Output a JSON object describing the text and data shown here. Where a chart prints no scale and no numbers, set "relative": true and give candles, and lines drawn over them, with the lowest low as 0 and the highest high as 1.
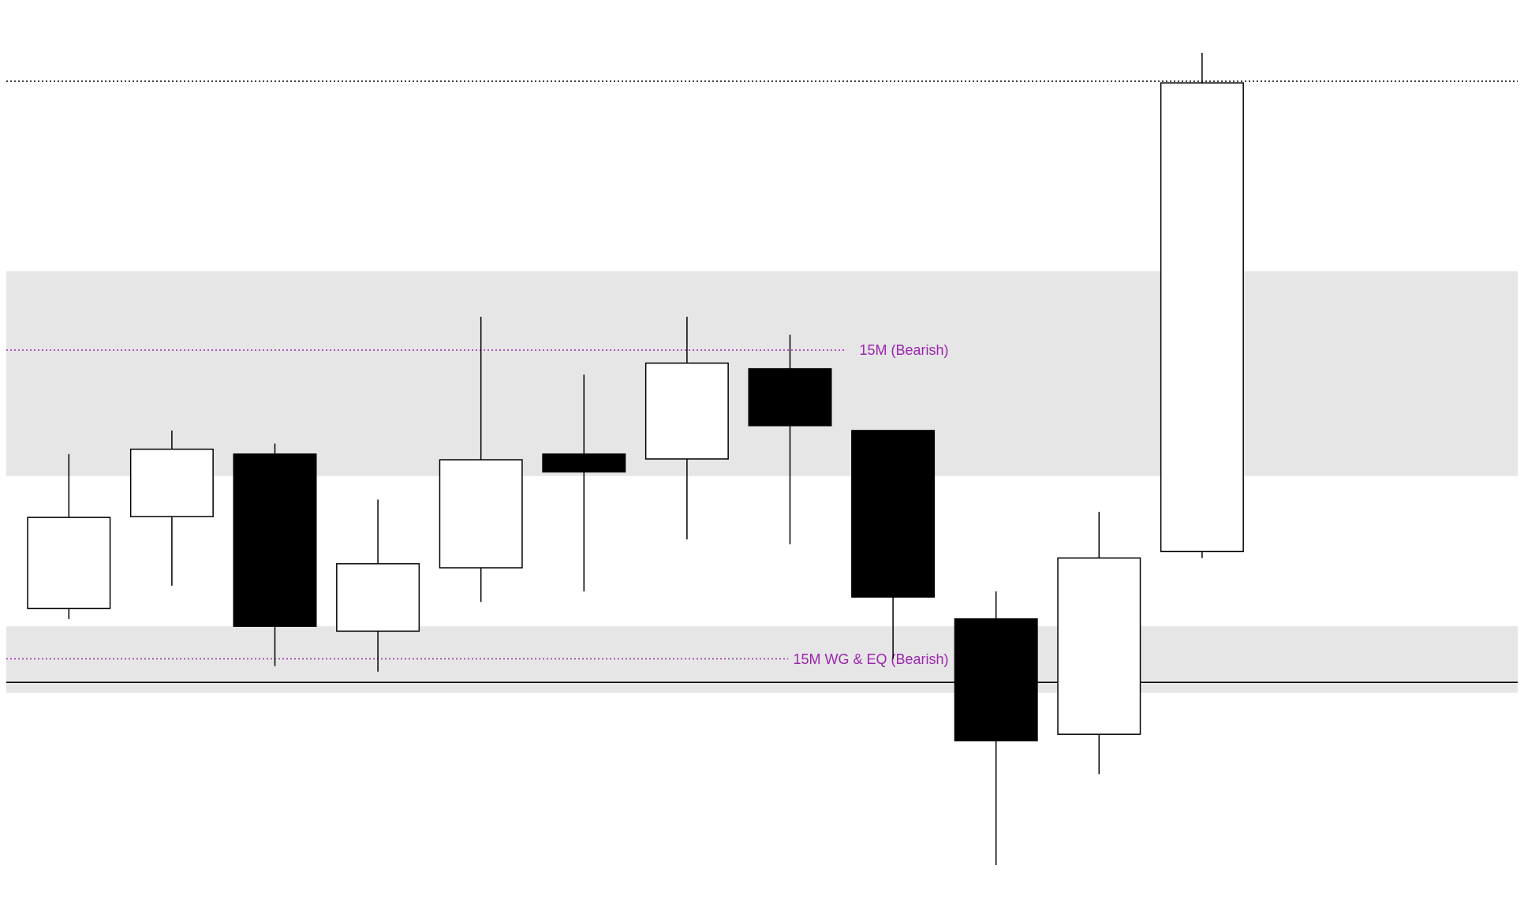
{
  "chart_data": {
    "type": "candlestick",
    "relative": true,
    "categories": [
      null,
      null,
      null,
      null,
      null,
      null,
      null,
      null,
      null,
      null,
      null,
      null
    ],
    "ohlc": [
      [
        0.316,
        0.506,
        0.303,
        0.428
      ],
      [
        0.429,
        0.535,
        0.344,
        0.512
      ],
      [
        0.506,
        0.519,
        0.245,
        0.294
      ],
      [
        0.288,
        0.45,
        0.238,
        0.371
      ],
      [
        0.366,
        0.675,
        0.324,
        0.499
      ],
      [
        0.506,
        0.604,
        0.337,
        0.484
      ],
      [
        0.5,
        0.675,
        0.401,
        0.618
      ],
      [
        0.611,
        0.653,
        0.395,
        0.541
      ],
      [
        0.535,
        0.535,
        0.254,
        0.33
      ],
      [
        0.303,
        0.337,
        0,
        0.153
      ],
      [
        0.161,
        0.435,
        0.112,
        0.378
      ],
      [
        0.386,
        1,
        0.378,
        0.963
      ]
    ],
    "bands": [
      {
        "axis": "y",
        "from": 0.479,
        "to": 0.731,
        "color": "#e6e6e6"
      },
      {
        "axis": "y",
        "from": 0.212,
        "to": 0.294,
        "color": "#e6e6e6"
      }
    ],
    "ref_lines": [
      {
        "axis": "y",
        "value": 0.965,
        "color": "#000000",
        "line_style": "dotted"
      },
      {
        "axis": "y",
        "value": 0.634,
        "label": "15M (Bearish)",
        "color": "#9c27b0",
        "line_style": "dotted"
      },
      {
        "axis": "y",
        "value": 0.254,
        "label": "15M WG & EQ (Bearish)",
        "color": "#9c27b0",
        "line_style": "dotted"
      },
      {
        "axis": "y",
        "value": 0.225,
        "color": "#000000",
        "line_style": "solid"
      }
    ]
  }
}
